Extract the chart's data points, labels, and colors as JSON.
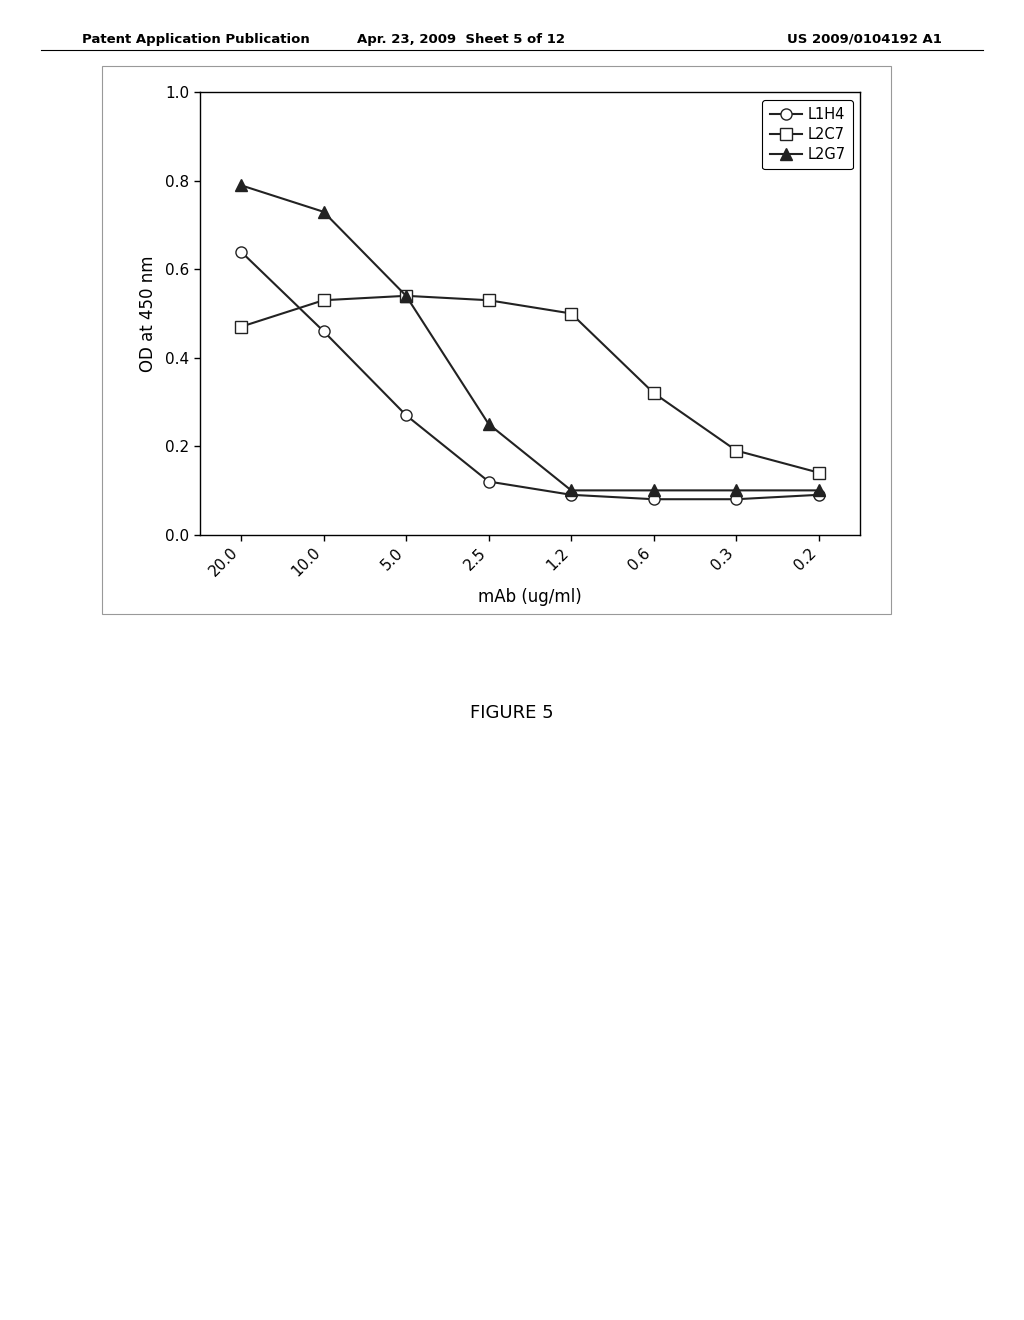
{
  "x_labels": [
    "20.0",
    "10.0",
    "5.0",
    "2.5",
    "1.2",
    "0.6",
    "0.3",
    "0.2"
  ],
  "x_positions": [
    0,
    1,
    2,
    3,
    4,
    5,
    6,
    7
  ],
  "L1H4": [
    0.64,
    0.46,
    0.27,
    0.12,
    0.09,
    0.08,
    0.08,
    0.09
  ],
  "L2C7": [
    0.47,
    0.53,
    0.54,
    0.53,
    0.5,
    0.32,
    0.19,
    0.14
  ],
  "L2G7": [
    0.79,
    0.73,
    0.54,
    0.25,
    0.1,
    0.1,
    0.1,
    0.1
  ],
  "ylabel": "OD at 450 nm",
  "xlabel": "mAb (ug/ml)",
  "ylim": [
    0.0,
    1.0
  ],
  "yticks": [
    0.0,
    0.2,
    0.4,
    0.6,
    0.8,
    1.0
  ],
  "legend_labels": [
    "L1H4",
    "L2C7",
    "L2G7"
  ],
  "header_left": "Patent Application Publication",
  "header_center": "Apr. 23, 2009  Sheet 5 of 12",
  "header_right": "US 2009/0104192 A1",
  "figure_label": "FIGURE 5",
  "bg_color": "#ffffff",
  "plot_bg_color": "#ffffff",
  "line_color": "#222222"
}
